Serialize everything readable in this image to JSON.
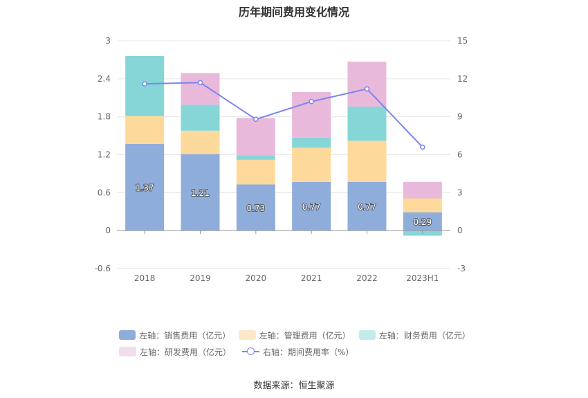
{
  "chart_data": {
    "type": "bar",
    "title": "历年期间费用变化情况",
    "categories": [
      "2018",
      "2019",
      "2020",
      "2021",
      "2022",
      "2023H1"
    ],
    "left_axis": {
      "ylim": [
        -0.6,
        3
      ],
      "ticks": [
        "-0.6",
        "0",
        "0.6",
        "1.2",
        "1.8",
        "2.4",
        "3"
      ]
    },
    "right_axis": {
      "ylim": [
        -3,
        15
      ],
      "ticks": [
        "-3",
        "0",
        "3",
        "6",
        "9",
        "12",
        "15"
      ]
    },
    "stacked": true,
    "series": [
      {
        "name": "左轴：销售费用（亿元）",
        "axis": "left",
        "color": "#8eaddb",
        "values": [
          1.37,
          1.21,
          0.73,
          0.77,
          0.77,
          0.29
        ],
        "labels": [
          "1.37",
          "1.21",
          "0.73",
          "0.77",
          "0.77",
          "0.29"
        ]
      },
      {
        "name": "左轴：管理费用（亿元）",
        "axis": "left",
        "color": "#fdd99b",
        "values": [
          0.44,
          0.37,
          0.39,
          0.54,
          0.65,
          0.22
        ]
      },
      {
        "name": "左轴：财务费用（亿元）",
        "axis": "left",
        "color": "#86d6d8",
        "values": [
          0.95,
          0.41,
          0.07,
          0.16,
          0.54,
          -0.08
        ]
      },
      {
        "name": "左轴：研发费用（亿元）",
        "axis": "left",
        "color": "#e8b9da",
        "values": [
          0.0,
          0.5,
          0.59,
          0.72,
          0.71,
          0.26
        ]
      },
      {
        "name": "右轴：期间费用率（%）",
        "axis": "right",
        "type": "line",
        "color": "#7b84f0",
        "values": [
          11.6,
          11.7,
          8.8,
          10.2,
          11.2,
          6.6
        ]
      }
    ],
    "grid": true,
    "legend_position": "bottom"
  },
  "footer": {
    "source": "数据来源：恒生聚源"
  }
}
